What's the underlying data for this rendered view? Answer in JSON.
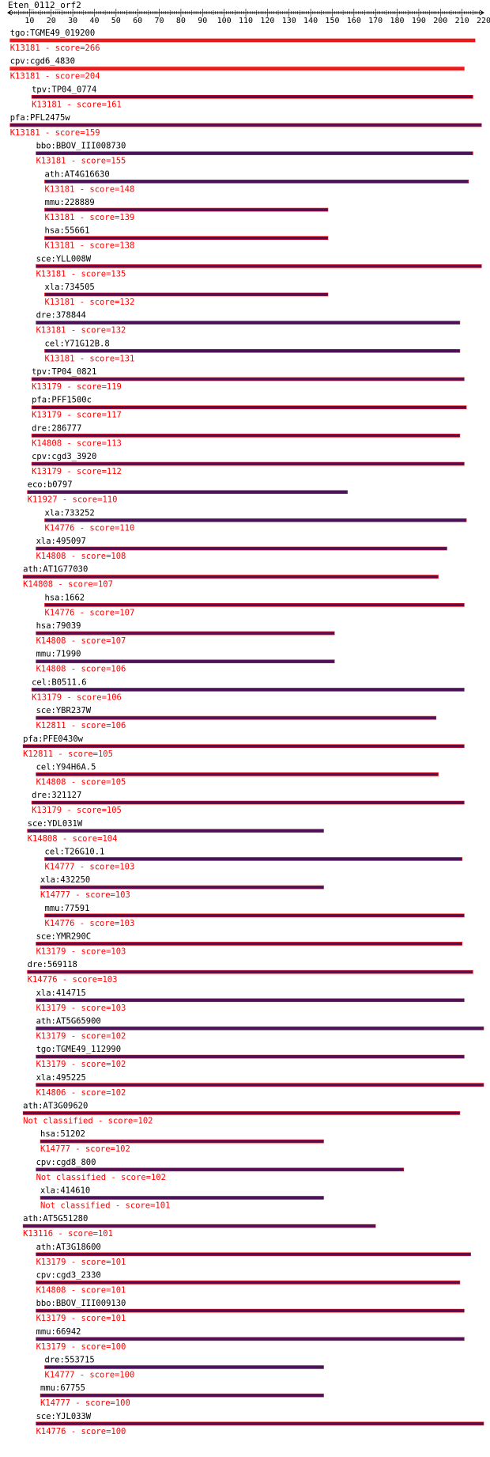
{
  "title": "Eten_0112_orf2",
  "chart_data": {
    "type": "alignment",
    "axis": {
      "min": 0,
      "max": 220,
      "ticks": [
        10,
        20,
        30,
        40,
        50,
        60,
        70,
        80,
        90,
        100,
        110,
        120,
        130,
        140,
        150,
        160,
        170,
        180,
        190,
        200,
        210,
        220
      ]
    },
    "hits": [
      {
        "gene": "tgo:TGME49_019200",
        "label": "K13181 - score=266",
        "start": 1,
        "end": 216
      },
      {
        "gene": "cpv:cgd6_4830",
        "label": "K13181 - score=204",
        "start": 1,
        "end": 211
      },
      {
        "gene": "tpv:TP04_0774",
        "label": "K13181 - score=161",
        "start": 11,
        "end": 215
      },
      {
        "gene": "pfa:PFL2475w",
        "label": "K13181 - score=159",
        "start": 1,
        "end": 219
      },
      {
        "gene": "bbo:BBOV_III008730",
        "label": "K13181 - score=155",
        "start": 13,
        "end": 215
      },
      {
        "gene": "ath:AT4G16630",
        "label": "K13181 - score=148",
        "start": 17,
        "end": 213
      },
      {
        "gene": "mmu:228889",
        "label": "K13181 - score=139",
        "start": 17,
        "end": 148
      },
      {
        "gene": "hsa:55661",
        "label": "K13181 - score=138",
        "start": 17,
        "end": 148
      },
      {
        "gene": "sce:YLL008W",
        "label": "K13181 - score=135",
        "start": 13,
        "end": 219
      },
      {
        "gene": "xla:734505",
        "label": "K13181 - score=132",
        "start": 17,
        "end": 148
      },
      {
        "gene": "dre:378844",
        "label": "K13181 - score=132",
        "start": 13,
        "end": 209
      },
      {
        "gene": "cel:Y71G12B.8",
        "label": "K13181 - score=131",
        "start": 17,
        "end": 209
      },
      {
        "gene": "tpv:TP04_0821",
        "label": "K13179 - score=119",
        "start": 11,
        "end": 211
      },
      {
        "gene": "pfa:PFF1500c",
        "label": "K13179 - score=117",
        "start": 11,
        "end": 212
      },
      {
        "gene": "dre:286777",
        "label": "K14808 - score=113",
        "start": 11,
        "end": 209
      },
      {
        "gene": "cpv:cgd3_3920",
        "label": "K13179 - score=112",
        "start": 11,
        "end": 211
      },
      {
        "gene": "eco:b0797",
        "label": "K11927 - score=110",
        "start": 9,
        "end": 157
      },
      {
        "gene": "xla:733252",
        "label": "K14776 - score=110",
        "start": 17,
        "end": 212
      },
      {
        "gene": "xla:495097",
        "label": "K14808 - score=108",
        "start": 13,
        "end": 203
      },
      {
        "gene": "ath:AT1G77030",
        "label": "K14808 - score=107",
        "start": 7,
        "end": 199
      },
      {
        "gene": "hsa:1662",
        "label": "K14776 - score=107",
        "start": 17,
        "end": 211
      },
      {
        "gene": "hsa:79039",
        "label": "K14808 - score=107",
        "start": 13,
        "end": 151
      },
      {
        "gene": "mmu:71990",
        "label": "K14808 - score=106",
        "start": 13,
        "end": 151
      },
      {
        "gene": "cel:B0511.6",
        "label": "K13179 - score=106",
        "start": 11,
        "end": 211
      },
      {
        "gene": "sce:YBR237W",
        "label": "K12811 - score=106",
        "start": 13,
        "end": 198
      },
      {
        "gene": "pfa:PFE0430w",
        "label": "K12811 - score=105",
        "start": 7,
        "end": 211
      },
      {
        "gene": "cel:Y94H6A.5",
        "label": "K14808 - score=105",
        "start": 13,
        "end": 199
      },
      {
        "gene": "dre:321127",
        "label": "K13179 - score=105",
        "start": 11,
        "end": 211
      },
      {
        "gene": "sce:YDL031W",
        "label": "K14808 - score=104",
        "start": 9,
        "end": 146
      },
      {
        "gene": "cel:T26G10.1",
        "label": "K14777 - score=103",
        "start": 17,
        "end": 210
      },
      {
        "gene": "xla:432250",
        "label": "K14777 - score=103",
        "start": 15,
        "end": 146
      },
      {
        "gene": "mmu:77591",
        "label": "K14776 - score=103",
        "start": 17,
        "end": 211
      },
      {
        "gene": "sce:YMR290C",
        "label": "K13179 - score=103",
        "start": 13,
        "end": 210
      },
      {
        "gene": "dre:569118",
        "label": "K14776 - score=103",
        "start": 9,
        "end": 215
      },
      {
        "gene": "xla:414715",
        "label": "K13179 - score=103",
        "start": 13,
        "end": 211
      },
      {
        "gene": "ath:AT5G65900",
        "label": "K13179 - score=102",
        "start": 13,
        "end": 220
      },
      {
        "gene": "tgo:TGME49_112990",
        "label": "K13179 - score=102",
        "start": 13,
        "end": 211
      },
      {
        "gene": "xla:495225",
        "label": "K14806 - score=102",
        "start": 13,
        "end": 220
      },
      {
        "gene": "ath:AT3G09620",
        "label": "Not classified - score=102",
        "start": 7,
        "end": 209
      },
      {
        "gene": "hsa:51202",
        "label": "K14777 - score=102",
        "start": 15,
        "end": 146
      },
      {
        "gene": "cpv:cgd8_800",
        "label": "Not classified - score=102",
        "start": 13,
        "end": 183
      },
      {
        "gene": "xla:414610",
        "label": "Not classified - score=101",
        "start": 15,
        "end": 146
      },
      {
        "gene": "ath:AT5G51280",
        "label": "K13116 - score=101",
        "start": 7,
        "end": 170
      },
      {
        "gene": "ath:AT3G18600",
        "label": "K13179 - score=101",
        "start": 13,
        "end": 214
      },
      {
        "gene": "cpv:cgd3_2330",
        "label": "K14808 - score=101",
        "start": 13,
        "end": 209
      },
      {
        "gene": "bbo:BBOV_III009130",
        "label": "K13179 - score=101",
        "start": 13,
        "end": 211
      },
      {
        "gene": "mmu:66942",
        "label": "K13179 - score=100",
        "start": 13,
        "end": 211
      },
      {
        "gene": "dre:553715",
        "label": "K14777 - score=100",
        "start": 17,
        "end": 146
      },
      {
        "gene": "mmu:67755",
        "label": "K14777 - score=100",
        "start": 15,
        "end": 146
      },
      {
        "gene": "sce:YJL033W",
        "label": "K14776 - score=100",
        "start": 13,
        "end": 220
      }
    ]
  },
  "colors": {
    "axis": "#000000",
    "gene_text": "#000000",
    "label_text": "#ff0000",
    "bar_red": "#e02020",
    "bar_purple": "#4b1259",
    "bar_outline": "#ff0000"
  }
}
